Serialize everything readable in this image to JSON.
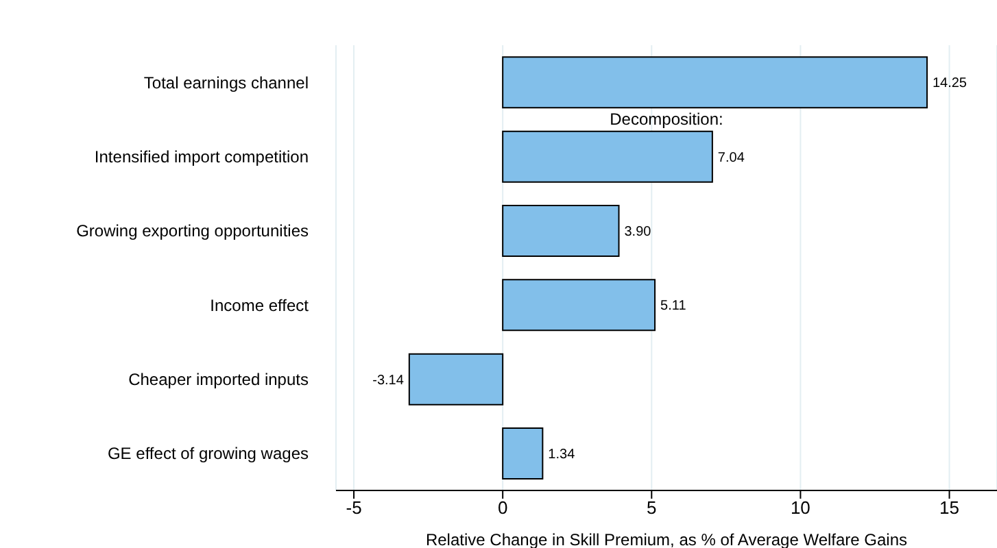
{
  "chart_data": {
    "type": "bar",
    "orientation": "horizontal",
    "xlabel": "Relative Change in Skill Premium, as % of Average Welfare Gains",
    "categories": [
      "Total earnings channel",
      "Intensified import competition",
      "Growing exporting opportunities",
      "Income effect",
      "Cheaper imported inputs",
      "GE effect of growing wages"
    ],
    "values": [
      14.25,
      7.04,
      3.9,
      5.11,
      -3.14,
      1.34
    ],
    "value_labels": [
      "14.25",
      "7.04",
      "3.90",
      "5.11",
      "-3.14",
      "1.34"
    ],
    "color": "#82bfea",
    "xlim": [
      -5.6,
      16.6
    ],
    "xticks": [
      -5,
      0,
      5,
      10,
      15
    ],
    "grid": "x",
    "annotations": [
      "Decomposition:"
    ]
  }
}
